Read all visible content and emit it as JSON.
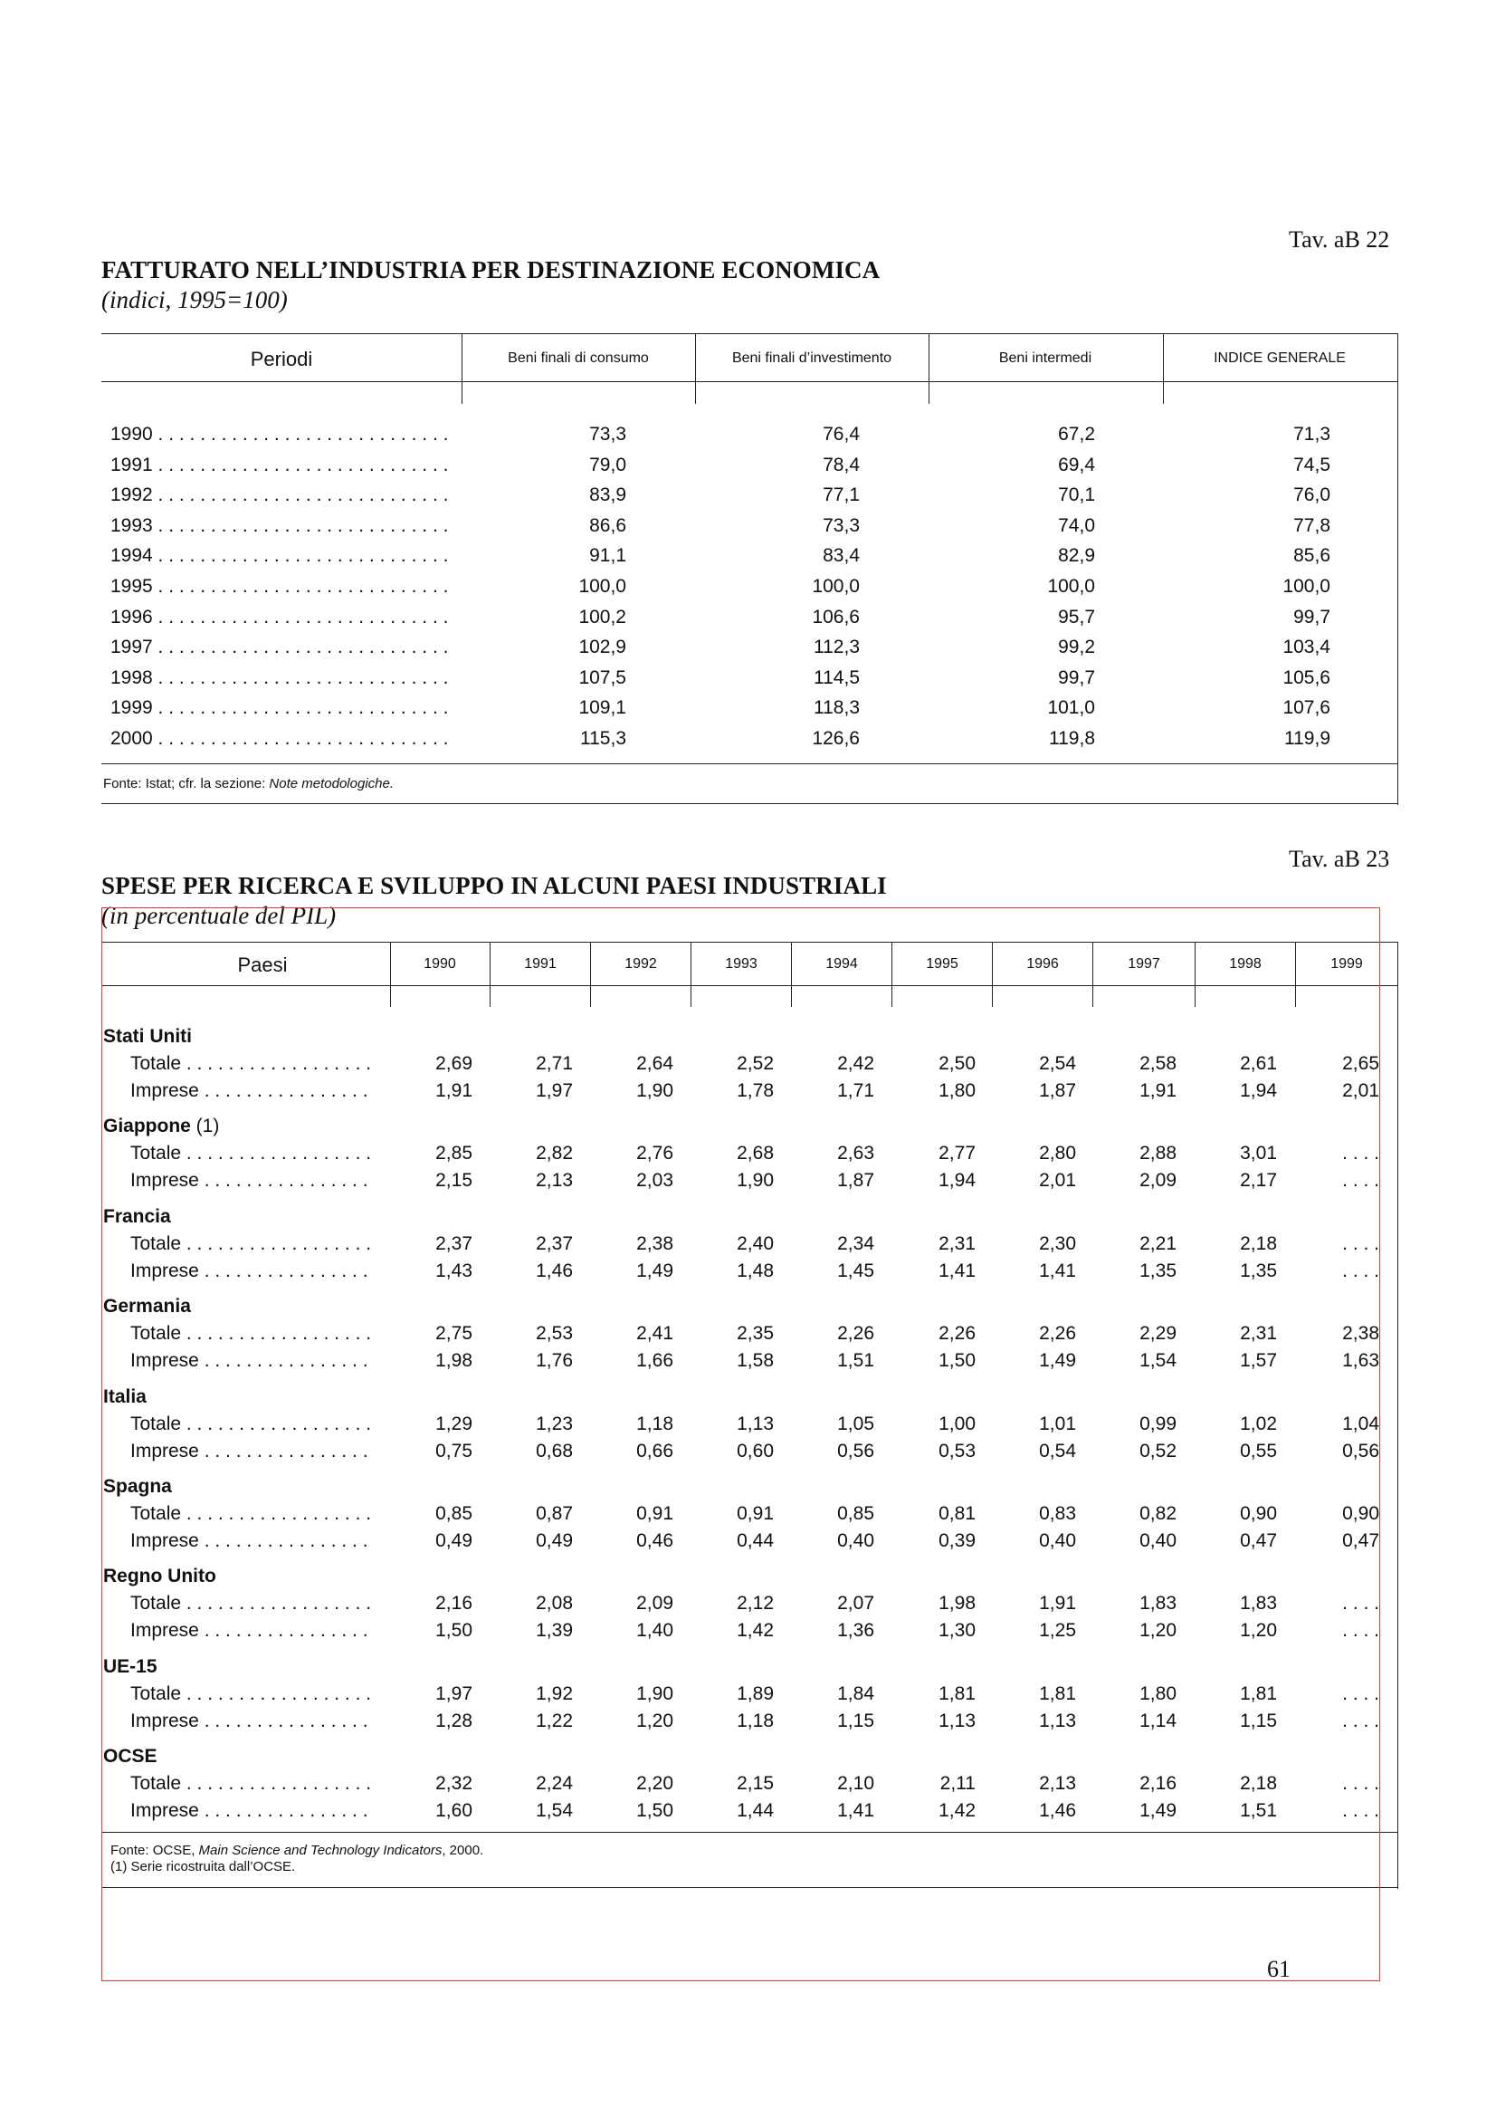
{
  "table1": {
    "ref": "Tav. aB 22",
    "title": "FATTURATO NELL’INDUSTRIA PER DESTINAZIONE ECONOMICA",
    "subtitle": "(indici, 1995=100)",
    "headers": [
      "Periodi",
      "Beni finali di consumo",
      "Beni finali d’investimento",
      "Beni intermedi",
      "INDICE GENERALE"
    ],
    "rows": [
      {
        "label": "1990 . . . . . . . . . . . . . . . . . . . . . . . . . . . .",
        "values": [
          "73,3",
          "76,4",
          "67,2",
          "71,3"
        ]
      },
      {
        "label": "1991 . . . . . . . . . . . . . . . . . . . . . . . . . . . .",
        "values": [
          "79,0",
          "78,4",
          "69,4",
          "74,5"
        ]
      },
      {
        "label": "1992 . . . . . . . . . . . . . . . . . . . . . . . . . . . .",
        "values": [
          "83,9",
          "77,1",
          "70,1",
          "76,0"
        ]
      },
      {
        "label": "1993 . . . . . . . . . . . . . . . . . . . . . . . . . . . .",
        "values": [
          "86,6",
          "73,3",
          "74,0",
          "77,8"
        ]
      },
      {
        "label": "1994 . . . . . . . . . . . . . . . . . . . . . . . . . . . .",
        "values": [
          "91,1",
          "83,4",
          "82,9",
          "85,6"
        ]
      },
      {
        "label": "1995 . . . . . . . . . . . . . . . . . . . . . . . . . . . .",
        "values": [
          "100,0",
          "100,0",
          "100,0",
          "100,0"
        ]
      },
      {
        "label": "1996 . . . . . . . . . . . . . . . . . . . . . . . . . . . .",
        "values": [
          "100,2",
          "106,6",
          "95,7",
          "99,7"
        ]
      },
      {
        "label": "1997 . . . . . . . . . . . . . . . . . . . . . . . . . . . .",
        "values": [
          "102,9",
          "112,3",
          "99,2",
          "103,4"
        ]
      },
      {
        "label": "1998 . . . . . . . . . . . . . . . . . . . . . . . . . . . .",
        "values": [
          "107,5",
          "114,5",
          "99,7",
          "105,6"
        ]
      },
      {
        "label": "1999 . . . . . . . . . . . . . . . . . . . . . . . . . . . .",
        "values": [
          "109,1",
          "118,3",
          "101,0",
          "107,6"
        ]
      },
      {
        "label": "2000 . . . . . . . . . . . . . . . . . . . . . . . . . . . .",
        "values": [
          "115,3",
          "126,6",
          "119,8",
          "119,9"
        ]
      }
    ],
    "source_prefix": "Fonte: Istat; cfr. la sezione: ",
    "source_italic": "Note metodologiche."
  },
  "table2": {
    "ref": "Tav. aB 23",
    "title": "SPESE PER RICERCA E SVILUPPO IN ALCUNI PAESI INDUSTRIALI",
    "subtitle": "(in percentuale del PIL)",
    "header_label": "Paesi",
    "years": [
      "1990",
      "1991",
      "1992",
      "1993",
      "1994",
      "1995",
      "1996",
      "1997",
      "1998",
      "1999"
    ],
    "groups": [
      {
        "name": "Stati Uniti",
        "suffix": "",
        "rows": [
          {
            "label": "Totale . . . . . . . . . . . . . . . . . .",
            "values": [
              "2,69",
              "2,71",
              "2,64",
              "2,52",
              "2,42",
              "2,50",
              "2,54",
              "2,58",
              "2,61",
              "2,65"
            ]
          },
          {
            "label": "Imprese . . . . . . . . . . . . . . . .",
            "values": [
              "1,91",
              "1,97",
              "1,90",
              "1,78",
              "1,71",
              "1,80",
              "1,87",
              "1,91",
              "1,94",
              "2,01"
            ]
          }
        ]
      },
      {
        "name": "Giappone",
        "suffix": " (1)",
        "rows": [
          {
            "label": "Totale . . . . . . . . . . . . . . . . . .",
            "values": [
              "2,85",
              "2,82",
              "2,76",
              "2,68",
              "2,63",
              "2,77",
              "2,80",
              "2,88",
              "3,01",
              ". . . ."
            ]
          },
          {
            "label": "Imprese . . . . . . . . . . . . . . . .",
            "values": [
              "2,15",
              "2,13",
              "2,03",
              "1,90",
              "1,87",
              "1,94",
              "2,01",
              "2,09",
              "2,17",
              ". . . ."
            ]
          }
        ]
      },
      {
        "name": "Francia",
        "suffix": "",
        "rows": [
          {
            "label": "Totale . . . . . . . . . . . . . . . . . .",
            "values": [
              "2,37",
              "2,37",
              "2,38",
              "2,40",
              "2,34",
              "2,31",
              "2,30",
              "2,21",
              "2,18",
              ". . . ."
            ]
          },
          {
            "label": "Imprese . . . . . . . . . . . . . . . .",
            "values": [
              "1,43",
              "1,46",
              "1,49",
              "1,48",
              "1,45",
              "1,41",
              "1,41",
              "1,35",
              "1,35",
              ". . . ."
            ]
          }
        ]
      },
      {
        "name": "Germania",
        "suffix": "",
        "rows": [
          {
            "label": "Totale . . . . . . . . . . . . . . . . . .",
            "values": [
              "2,75",
              "2,53",
              "2,41",
              "2,35",
              "2,26",
              "2,26",
              "2,26",
              "2,29",
              "2,31",
              "2,38"
            ]
          },
          {
            "label": "Imprese . . . . . . . . . . . . . . . .",
            "values": [
              "1,98",
              "1,76",
              "1,66",
              "1,58",
              "1,51",
              "1,50",
              "1,49",
              "1,54",
              "1,57",
              "1,63"
            ]
          }
        ]
      },
      {
        "name": "Italia",
        "suffix": "",
        "rows": [
          {
            "label": "Totale . . . . . . . . . . . . . . . . . .",
            "values": [
              "1,29",
              "1,23",
              "1,18",
              "1,13",
              "1,05",
              "1,00",
              "1,01",
              "0,99",
              "1,02",
              "1,04"
            ]
          },
          {
            "label": "Imprese . . . . . . . . . . . . . . . .",
            "values": [
              "0,75",
              "0,68",
              "0,66",
              "0,60",
              "0,56",
              "0,53",
              "0,54",
              "0,52",
              "0,55",
              "0,56"
            ]
          }
        ]
      },
      {
        "name": "Spagna",
        "suffix": "",
        "rows": [
          {
            "label": "Totale . . . . . . . . . . . . . . . . . .",
            "values": [
              "0,85",
              "0,87",
              "0,91",
              "0,91",
              "0,85",
              "0,81",
              "0,83",
              "0,82",
              "0,90",
              "0,90"
            ]
          },
          {
            "label": "Imprese . . . . . . . . . . . . . . . .",
            "values": [
              "0,49",
              "0,49",
              "0,46",
              "0,44",
              "0,40",
              "0,39",
              "0,40",
              "0,40",
              "0,47",
              "0,47"
            ]
          }
        ]
      },
      {
        "name": "Regno Unito",
        "suffix": "",
        "rows": [
          {
            "label": "Totale . . . . . . . . . . . . . . . . . .",
            "values": [
              "2,16",
              "2,08",
              "2,09",
              "2,12",
              "2,07",
              "1,98",
              "1,91",
              "1,83",
              "1,83",
              ". . . ."
            ]
          },
          {
            "label": "Imprese . . . . . . . . . . . . . . . .",
            "values": [
              "1,50",
              "1,39",
              "1,40",
              "1,42",
              "1,36",
              "1,30",
              "1,25",
              "1,20",
              "1,20",
              ". . . ."
            ]
          }
        ]
      },
      {
        "name": "UE-15",
        "suffix": "",
        "rows": [
          {
            "label": "Totale . . . . . . . . . . . . . . . . . .",
            "values": [
              "1,97",
              "1,92",
              "1,90",
              "1,89",
              "1,84",
              "1,81",
              "1,81",
              "1,80",
              "1,81",
              ". . . ."
            ]
          },
          {
            "label": "Imprese . . . . . . . . . . . . . . . .",
            "values": [
              "1,28",
              "1,22",
              "1,20",
              "1,18",
              "1,15",
              "1,13",
              "1,13",
              "1,14",
              "1,15",
              ". . . ."
            ]
          }
        ]
      },
      {
        "name": "OCSE",
        "suffix": "",
        "rows": [
          {
            "label": "Totale . . . . . . . . . . . . . . . . . .",
            "values": [
              "2,32",
              "2,24",
              "2,20",
              "2,15",
              "2,10",
              "2,11",
              "2,13",
              "2,16",
              "2,18",
              ". . . ."
            ]
          },
          {
            "label": "Imprese . . . . . . . . . . . . . . . .",
            "values": [
              "1,60",
              "1,54",
              "1,50",
              "1,44",
              "1,41",
              "1,42",
              "1,46",
              "1,49",
              "1,51",
              ". . . ."
            ]
          }
        ]
      }
    ],
    "source_prefix": "Fonte: OCSE, ",
    "source_italic": "Main Science and Technology Indicators",
    "source_suffix": ", 2000.",
    "note": "(1) Serie ricostruita dall’OCSE."
  },
  "page_number": "61",
  "colors": {
    "text": "#111111",
    "rules": "#222222",
    "selection_frame": "#e53935"
  }
}
